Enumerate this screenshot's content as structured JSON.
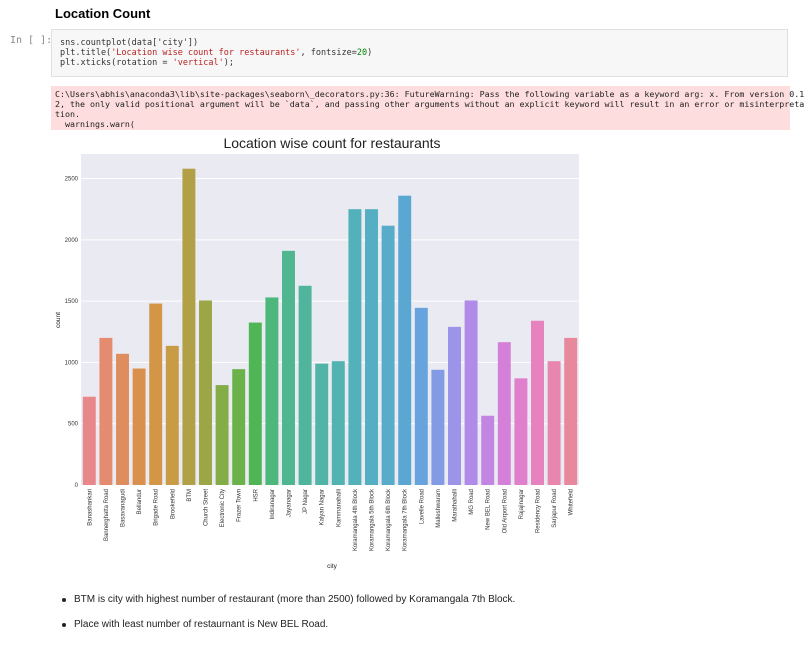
{
  "heading": "Location Count",
  "prompt": "In [ ]:",
  "code": {
    "line1": "sns.countplot(data['city'])",
    "line2a": "plt.title(",
    "line2b": "'Location wise count for restaurants'",
    "line2c": ", fontsize=",
    "line2d": "20",
    "line2e": ")",
    "line3a": "plt.xticks(rotation = ",
    "line3b": "'vertical'",
    "line3c": ");"
  },
  "stderr": {
    "line1": "C:\\Users\\abhis\\anaconda3\\lib\\site-packages\\seaborn\\_decorators.py:36: FutureWarning: Pass the following variable as a keyword arg: x. From version 0.1",
    "line2": "2, the only valid positional argument will be `data`, and passing other arguments without an explicit keyword will result in an error or misinterpreta",
    "line3": "tion.",
    "line4": "  warnings.warn("
  },
  "chart_data": {
    "type": "bar",
    "title": "Location wise count for restaurants",
    "xlabel": "city",
    "ylabel": "count",
    "ylim": [
      0,
      2700
    ],
    "yticks": [
      0,
      500,
      1000,
      1500,
      2000,
      2500
    ],
    "categories": [
      "Banashankari",
      "Bannerghatta Road",
      "Basavanagudi",
      "Bellandur",
      "Brigade Road",
      "Brookefield",
      "BTM",
      "Church Street",
      "Electronic City",
      "Frazer Town",
      "HSR",
      "Indiranagar",
      "Jayanagar",
      "JP Nagar",
      "Kalyan Nagar",
      "Kammanahalli",
      "Koramangala 4th Block",
      "Koramangala 5th Block",
      "Koramangala 6th Block",
      "Koramangala 7th Block",
      "Lavelle Road",
      "Malleshwaram",
      "Marathahalli",
      "MG Road",
      "New BEL Road",
      "Old Airport Road",
      "Rajajinagar",
      "Residency Road",
      "Sarjapur Road",
      "Whitefield"
    ],
    "values": [
      720,
      1200,
      1070,
      950,
      1480,
      1135,
      2580,
      1505,
      815,
      945,
      1325,
      1530,
      1910,
      1625,
      990,
      1010,
      2250,
      2250,
      2115,
      2360,
      1445,
      940,
      1290,
      1505,
      565,
      1165,
      870,
      1340,
      1010,
      1200
    ],
    "colors": [
      "#e8878a",
      "#e58c70",
      "#de8e5e",
      "#d9904d",
      "#d29646",
      "#c89b45",
      "#b1a046",
      "#9ba747",
      "#84ad48",
      "#6bb24b",
      "#50b555",
      "#4db77c",
      "#4fb68f",
      "#50b59c",
      "#51b4a7",
      "#52b3b1",
      "#53b1ba",
      "#55afc3",
      "#57acca",
      "#5aa8d2",
      "#67a4de",
      "#839be4",
      "#9b94e8",
      "#b08ce8",
      "#c385e2",
      "#d480d8",
      "#e07fcc",
      "#e682bd",
      "#e886ae",
      "#e8889d"
    ],
    "grid": true
  },
  "bullets": [
    "BTM is city with highest number of restaurant (more than 2500) followed by Koramangala 7th Block.",
    "Place with least number of restaurnant is New BEL Road."
  ]
}
